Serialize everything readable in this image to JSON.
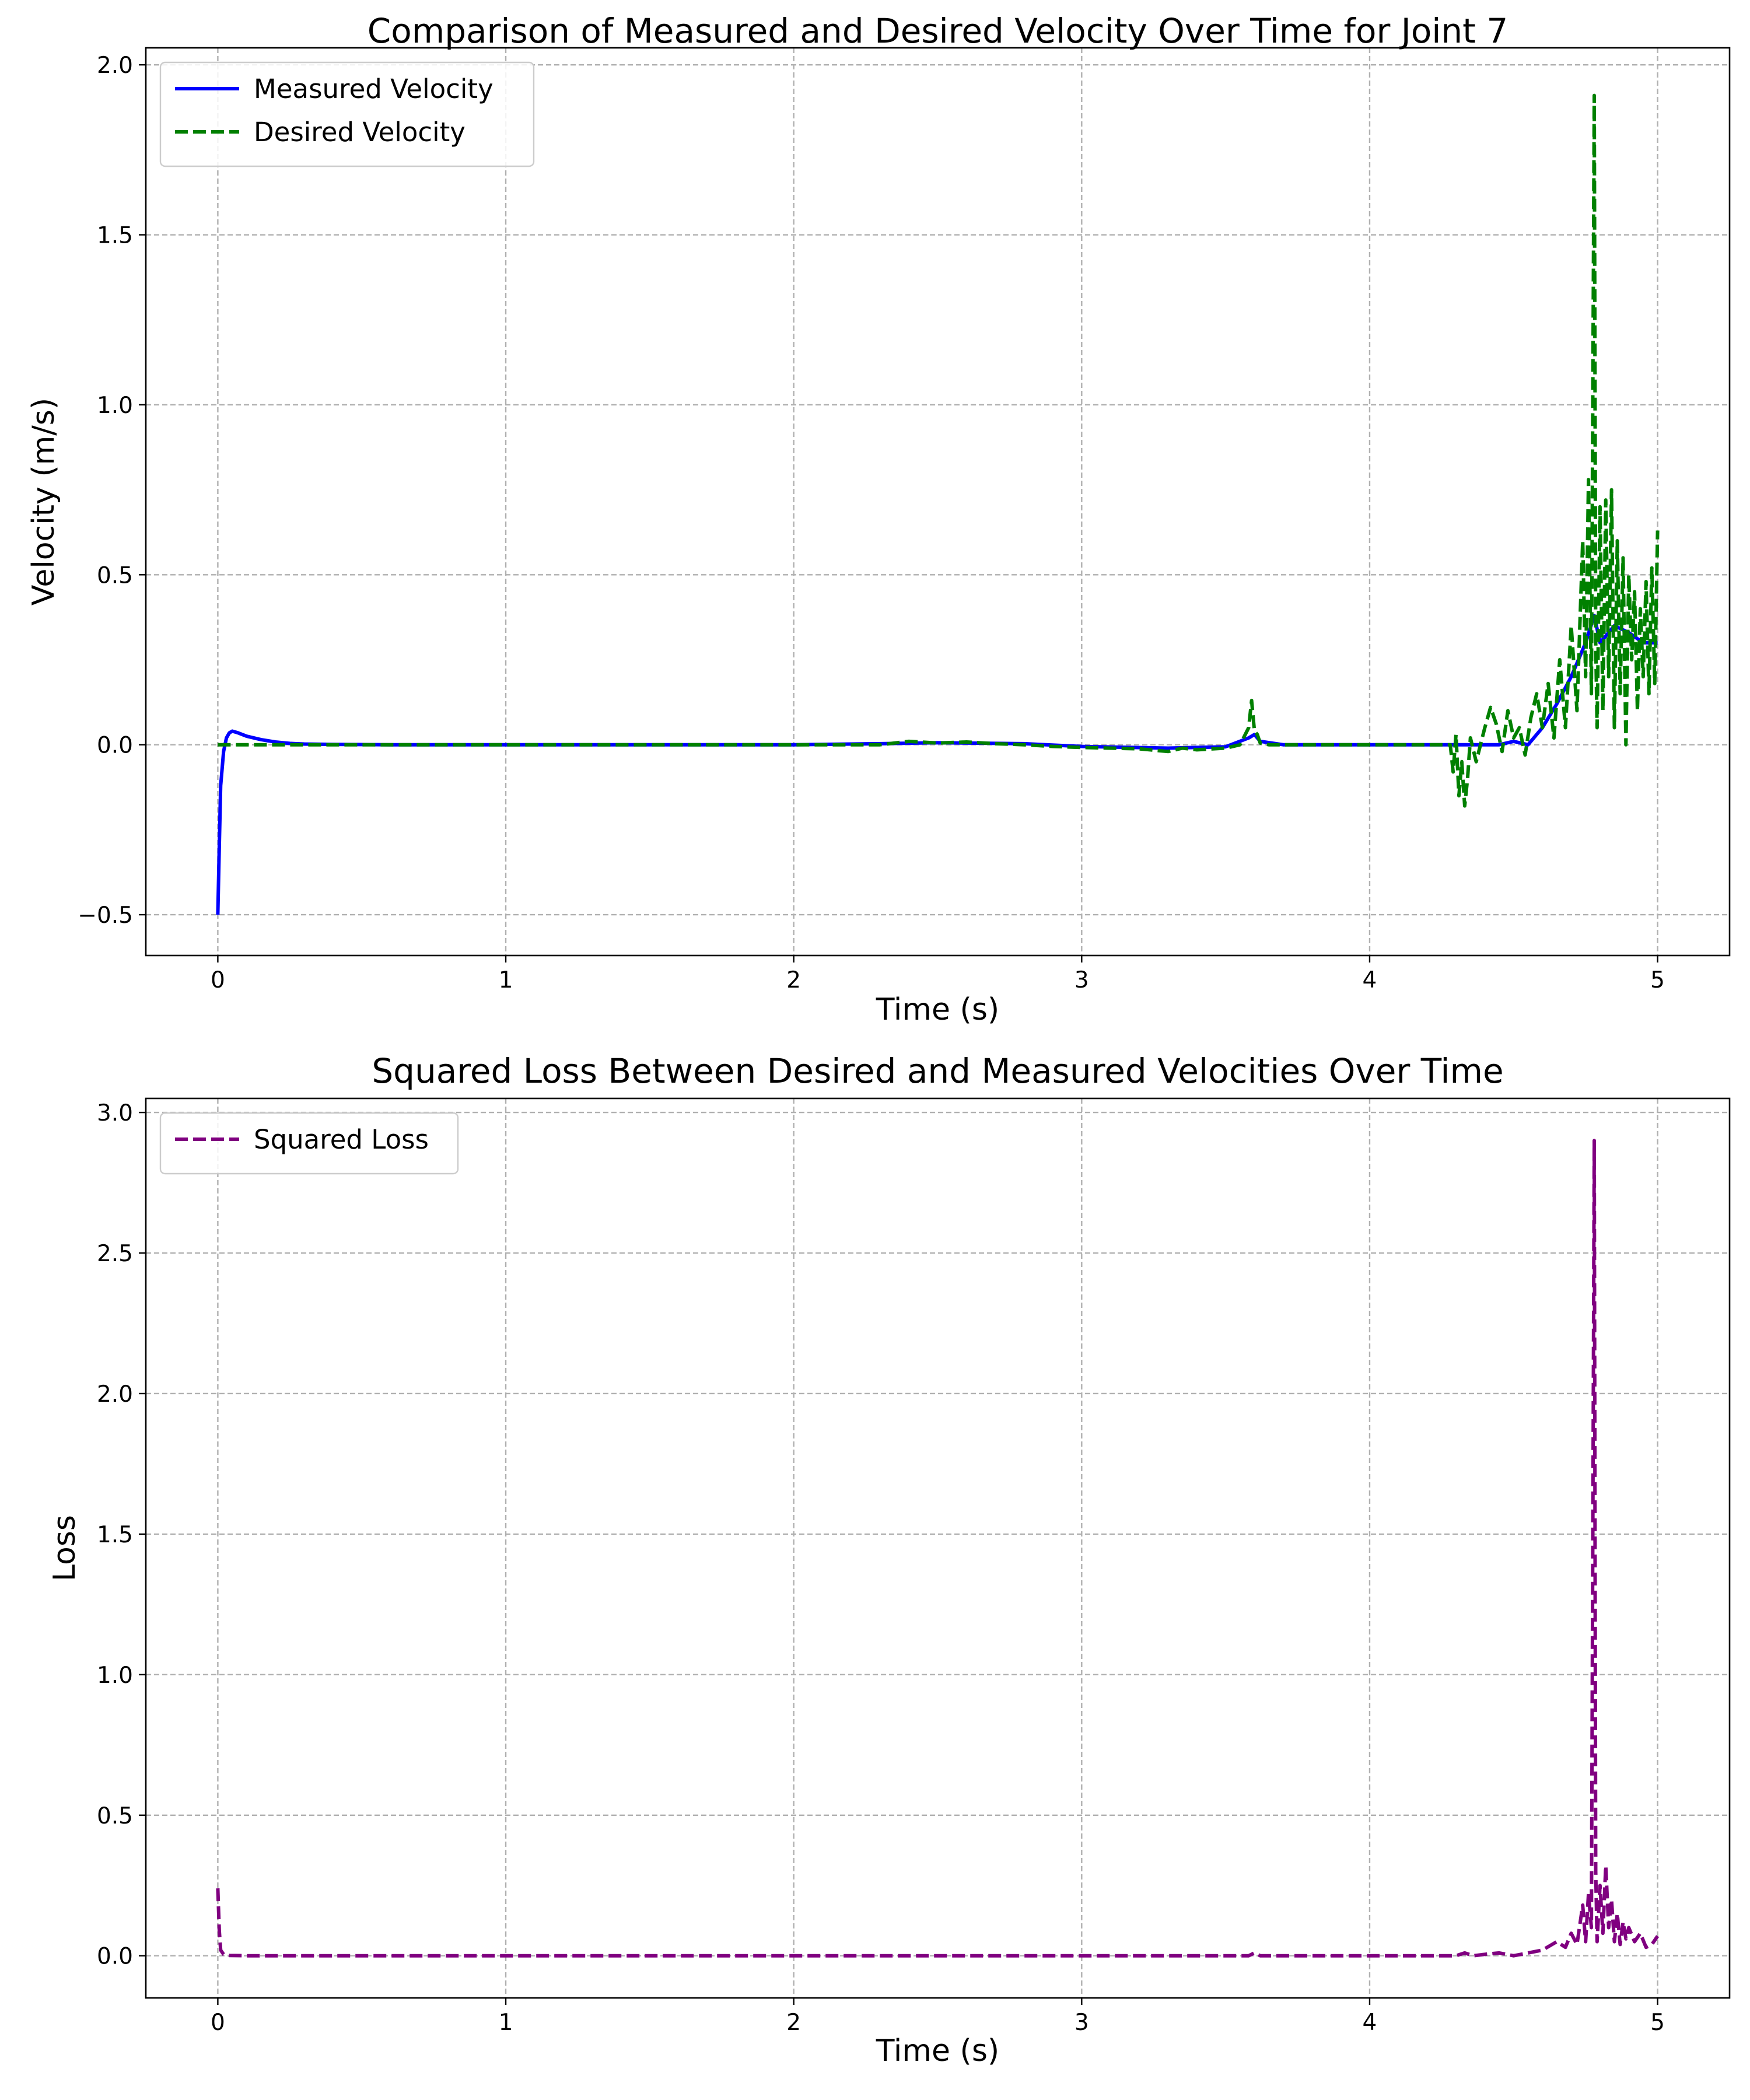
{
  "chart_data": [
    {
      "type": "line",
      "title": "Comparison of Measured and Desired Velocity Over Time for Joint 7",
      "xlabel": "Time (s)",
      "ylabel": "Velocity (m/s)",
      "xlim": [
        -0.25,
        5.25
      ],
      "ylim": [
        -0.62,
        2.05
      ],
      "xticks": [
        0,
        1,
        2,
        3,
        4,
        5
      ],
      "xtick_labels": [
        "0",
        "1",
        "2",
        "3",
        "4",
        "5"
      ],
      "yticks": [
        -0.5,
        0.0,
        0.5,
        1.0,
        1.5,
        2.0
      ],
      "ytick_labels": [
        "−0.5",
        "0.0",
        "0.5",
        "1.0",
        "1.5",
        "2.0"
      ],
      "grid": true,
      "legend_position": "top-left",
      "series": [
        {
          "name": "Measured Velocity",
          "color": "#0000ff",
          "style": "solid",
          "x": [
            0.0,
            0.005,
            0.01,
            0.02,
            0.03,
            0.04,
            0.05,
            0.07,
            0.1,
            0.15,
            0.2,
            0.25,
            0.3,
            0.4,
            0.6,
            1.0,
            2.0,
            2.3,
            2.5,
            2.8,
            3.0,
            3.3,
            3.5,
            3.58,
            3.6,
            3.62,
            3.7,
            4.0,
            4.3,
            4.45,
            4.5,
            4.55,
            4.6,
            4.65,
            4.7,
            4.75,
            4.78,
            4.8,
            4.85,
            4.9,
            4.95,
            5.0
          ],
          "values": [
            -0.5,
            -0.3,
            -0.12,
            -0.02,
            0.02,
            0.035,
            0.04,
            0.035,
            0.025,
            0.015,
            0.008,
            0.004,
            0.002,
            0.001,
            0.0,
            0.0,
            0.0,
            0.003,
            0.006,
            0.003,
            -0.005,
            -0.01,
            -0.006,
            0.02,
            0.03,
            0.01,
            0.0,
            0.0,
            0.0,
            0.0,
            0.01,
            0.0,
            0.05,
            0.12,
            0.2,
            0.3,
            0.38,
            0.3,
            0.35,
            0.33,
            0.3,
            0.3
          ]
        },
        {
          "name": "Desired Velocity",
          "color": "#008000",
          "style": "dashed",
          "x": [
            0.0,
            0.02,
            0.4,
            1.0,
            2.0,
            2.3,
            2.4,
            2.5,
            2.6,
            2.7,
            2.8,
            2.9,
            3.0,
            3.1,
            3.2,
            3.3,
            3.35,
            3.4,
            3.5,
            3.55,
            3.58,
            3.59,
            3.6,
            3.61,
            3.62,
            3.65,
            3.7,
            3.8,
            4.0,
            4.2,
            4.28,
            4.29,
            4.3,
            4.31,
            4.32,
            4.33,
            4.34,
            4.35,
            4.37,
            4.4,
            4.42,
            4.44,
            4.46,
            4.48,
            4.5,
            4.52,
            4.54,
            4.56,
            4.58,
            4.6,
            4.62,
            4.64,
            4.66,
            4.68,
            4.7,
            4.72,
            4.74,
            4.75,
            4.76,
            4.77,
            4.78,
            4.785,
            4.79,
            4.8,
            4.81,
            4.82,
            4.83,
            4.84,
            4.85,
            4.86,
            4.87,
            4.88,
            4.89,
            4.9,
            4.91,
            4.92,
            4.93,
            4.94,
            4.95,
            4.96,
            4.97,
            4.98,
            4.99,
            5.0
          ],
          "values": [
            0.0,
            0.0,
            0.0,
            0.0,
            0.0,
            0.0,
            0.01,
            0.005,
            0.008,
            0.003,
            0.0,
            -0.005,
            -0.008,
            -0.01,
            -0.012,
            -0.02,
            -0.01,
            -0.015,
            -0.01,
            0.0,
            0.05,
            0.13,
            0.04,
            0.03,
            0.005,
            0.0,
            0.0,
            0.0,
            0.0,
            0.0,
            0.0,
            -0.08,
            0.03,
            -0.15,
            -0.05,
            -0.18,
            -0.1,
            0.02,
            -0.05,
            0.05,
            0.11,
            0.06,
            -0.02,
            0.1,
            0.02,
            0.05,
            -0.03,
            0.08,
            0.15,
            0.05,
            0.18,
            0.02,
            0.25,
            0.05,
            0.35,
            0.1,
            0.6,
            0.2,
            0.78,
            0.15,
            1.91,
            0.3,
            0.05,
            0.7,
            0.1,
            0.72,
            0.2,
            0.75,
            0.05,
            0.6,
            0.15,
            0.55,
            0.0,
            0.5,
            0.25,
            0.45,
            0.1,
            0.4,
            0.2,
            0.48,
            0.15,
            0.52,
            0.18,
            0.63
          ]
        }
      ]
    },
    {
      "type": "line",
      "title": "Squared Loss Between Desired and Measured Velocities Over Time",
      "xlabel": "Time (s)",
      "ylabel": "Loss",
      "xlim": [
        -0.25,
        5.25
      ],
      "ylim": [
        -0.15,
        3.05
      ],
      "xticks": [
        0,
        1,
        2,
        3,
        4,
        5
      ],
      "xtick_labels": [
        "0",
        "1",
        "2",
        "3",
        "4",
        "5"
      ],
      "yticks": [
        0.0,
        0.5,
        1.0,
        1.5,
        2.0,
        2.5,
        3.0
      ],
      "ytick_labels": [
        "0.0",
        "0.5",
        "1.0",
        "1.5",
        "2.0",
        "2.5",
        "3.0"
      ],
      "grid": true,
      "legend_position": "top-left",
      "series": [
        {
          "name": "Squared Loss",
          "color": "#800080",
          "style": "dashed",
          "x": [
            0.0,
            0.005,
            0.01,
            0.02,
            0.04,
            0.1,
            0.5,
            1.0,
            2.0,
            3.0,
            3.58,
            3.6,
            3.62,
            4.0,
            4.3,
            4.33,
            4.36,
            4.4,
            4.45,
            4.5,
            4.6,
            4.65,
            4.68,
            4.7,
            4.72,
            4.74,
            4.75,
            4.76,
            4.77,
            4.78,
            4.785,
            4.79,
            4.8,
            4.81,
            4.82,
            4.83,
            4.84,
            4.85,
            4.86,
            4.87,
            4.88,
            4.89,
            4.9,
            4.92,
            4.94,
            4.96,
            4.98,
            5.0
          ],
          "values": [
            0.24,
            0.09,
            0.02,
            0.005,
            0.001,
            0.0,
            0.0,
            0.0,
            0.0,
            0.0,
            0.0,
            0.01,
            0.0,
            0.0,
            0.0,
            0.01,
            0.0,
            0.005,
            0.01,
            0.0,
            0.02,
            0.05,
            0.03,
            0.08,
            0.04,
            0.18,
            0.05,
            0.22,
            0.1,
            2.9,
            0.3,
            0.05,
            0.25,
            0.08,
            0.32,
            0.1,
            0.2,
            0.05,
            0.15,
            0.04,
            0.12,
            0.06,
            0.1,
            0.05,
            0.08,
            0.03,
            0.04,
            0.07
          ]
        }
      ]
    }
  ]
}
